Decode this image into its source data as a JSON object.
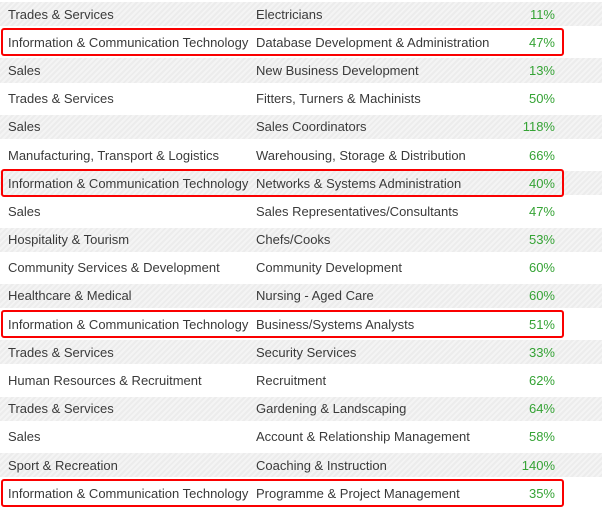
{
  "colors": {
    "value_green": "#35a335",
    "highlight_red": "#fa0000",
    "row_stripe_dark": "#ececec",
    "row_stripe_light": "#f4f4f4",
    "text": "#3a3a3a",
    "background": "#ffffff"
  },
  "table": {
    "rows": [
      {
        "category": "Trades & Services",
        "role": "Electricians",
        "value": "11%",
        "highlighted": false
      },
      {
        "category": "Information & Communication Technology",
        "role": "Database Development & Administration",
        "value": "47%",
        "highlighted": true
      },
      {
        "category": "Sales",
        "role": "New Business Development",
        "value": "13%",
        "highlighted": false
      },
      {
        "category": "Trades & Services",
        "role": "Fitters, Turners & Machinists",
        "value": "50%",
        "highlighted": false
      },
      {
        "category": "Sales",
        "role": "Sales Coordinators",
        "value": "118%",
        "highlighted": false
      },
      {
        "category": "Manufacturing, Transport & Logistics",
        "role": "Warehousing, Storage & Distribution",
        "value": "66%",
        "highlighted": false
      },
      {
        "category": "Information & Communication Technology",
        "role": "Networks & Systems Administration",
        "value": "40%",
        "highlighted": true
      },
      {
        "category": "Sales",
        "role": "Sales Representatives/Consultants",
        "value": "47%",
        "highlighted": false
      },
      {
        "category": "Hospitality & Tourism",
        "role": "Chefs/Cooks",
        "value": "53%",
        "highlighted": false
      },
      {
        "category": "Community Services & Development",
        "role": "Community Development",
        "value": "60%",
        "highlighted": false
      },
      {
        "category": "Healthcare & Medical",
        "role": "Nursing - Aged Care",
        "value": "60%",
        "highlighted": false
      },
      {
        "category": "Information & Communication Technology",
        "role": "Business/Systems Analysts",
        "value": "51%",
        "highlighted": true
      },
      {
        "category": "Trades & Services",
        "role": "Security Services",
        "value": "33%",
        "highlighted": false
      },
      {
        "category": "Human Resources & Recruitment",
        "role": "Recruitment",
        "value": "62%",
        "highlighted": false
      },
      {
        "category": "Trades & Services",
        "role": "Gardening & Landscaping",
        "value": "64%",
        "highlighted": false
      },
      {
        "category": "Sales",
        "role": "Account & Relationship Management",
        "value": "58%",
        "highlighted": false
      },
      {
        "category": "Sport & Recreation",
        "role": "Coaching & Instruction",
        "value": "140%",
        "highlighted": false
      },
      {
        "category": "Information & Communication Technology",
        "role": "Programme & Project Management",
        "value": "35%",
        "highlighted": true
      }
    ]
  },
  "chart_data": {
    "type": "table",
    "rows": [
      [
        "Trades & Services",
        "Electricians",
        "11%"
      ],
      [
        "Information & Communication Technology",
        "Database Development & Administration",
        "47%"
      ],
      [
        "Sales",
        "New Business Development",
        "13%"
      ],
      [
        "Trades & Services",
        "Fitters, Turners & Machinists",
        "50%"
      ],
      [
        "Sales",
        "Sales Coordinators",
        "118%"
      ],
      [
        "Manufacturing, Transport & Logistics",
        "Warehousing, Storage & Distribution",
        "66%"
      ],
      [
        "Information & Communication Technology",
        "Networks & Systems Administration",
        "40%"
      ],
      [
        "Sales",
        "Sales Representatives/Consultants",
        "47%"
      ],
      [
        "Hospitality & Tourism",
        "Chefs/Cooks",
        "53%"
      ],
      [
        "Community Services & Development",
        "Community Development",
        "60%"
      ],
      [
        "Healthcare & Medical",
        "Nursing - Aged Care",
        "60%"
      ],
      [
        "Information & Communication Technology",
        "Business/Systems Analysts",
        "51%"
      ],
      [
        "Trades & Services",
        "Security Services",
        "33%"
      ],
      [
        "Human Resources & Recruitment",
        "Recruitment",
        "62%"
      ],
      [
        "Trades & Services",
        "Gardening & Landscaping",
        "64%"
      ],
      [
        "Sales",
        "Account & Relationship Management",
        "58%"
      ],
      [
        "Sport & Recreation",
        "Coaching & Instruction",
        "140%"
      ],
      [
        "Information & Communication Technology",
        "Programme & Project Management",
        "35%"
      ]
    ],
    "values_percent": [
      11,
      47,
      13,
      50,
      118,
      66,
      40,
      47,
      53,
      60,
      60,
      51,
      33,
      62,
      64,
      58,
      140,
      35
    ],
    "highlighted_row_indices": [
      1,
      6,
      11,
      17
    ],
    "title": "",
    "legend": "none",
    "grid": "striped-rows"
  }
}
